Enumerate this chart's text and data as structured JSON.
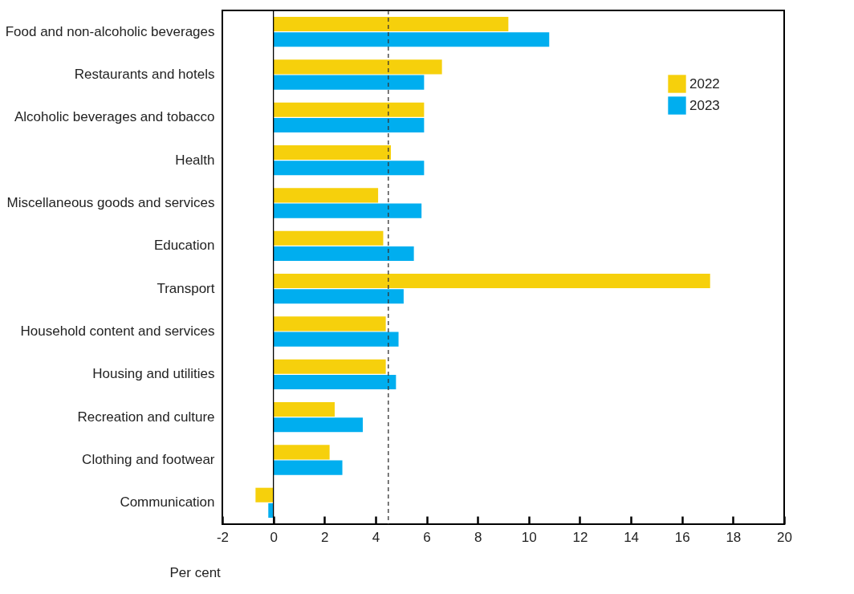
{
  "chart_data": {
    "type": "bar",
    "orientation": "horizontal",
    "xlabel": "Per cent",
    "categories": [
      "Food and non-alcoholic beverages",
      "Restaurants and hotels",
      "Alcoholic beverages and tobacco",
      "Health",
      "Miscellaneous goods and services",
      "Education",
      "Transport",
      "Household content and services",
      "Housing and utilities",
      "Recreation and culture",
      "Clothing and footwear",
      "Communication"
    ],
    "series": [
      {
        "name": "2022",
        "color": "#f6d00c",
        "values": [
          9.2,
          6.6,
          5.9,
          4.6,
          4.1,
          4.3,
          17.1,
          4.4,
          4.4,
          2.4,
          2.2,
          -0.7
        ]
      },
      {
        "name": "2023",
        "color": "#00aeef",
        "values": [
          10.8,
          5.9,
          5.9,
          5.9,
          5.8,
          5.5,
          5.1,
          4.9,
          4.8,
          3.5,
          2.7,
          -0.2
        ]
      }
    ],
    "xlim": [
      -2,
      20
    ],
    "xticks": [
      -2,
      0,
      2,
      4,
      6,
      8,
      10,
      12,
      14,
      16,
      18,
      20
    ],
    "ref_lines": [
      {
        "axis": "x",
        "value": 0,
        "color": "#000000",
        "line_style": "solid"
      },
      {
        "axis": "x",
        "value": 4.5,
        "color": "#333333",
        "line_style": "dashed"
      }
    ],
    "grid": false,
    "legend": "top right"
  }
}
